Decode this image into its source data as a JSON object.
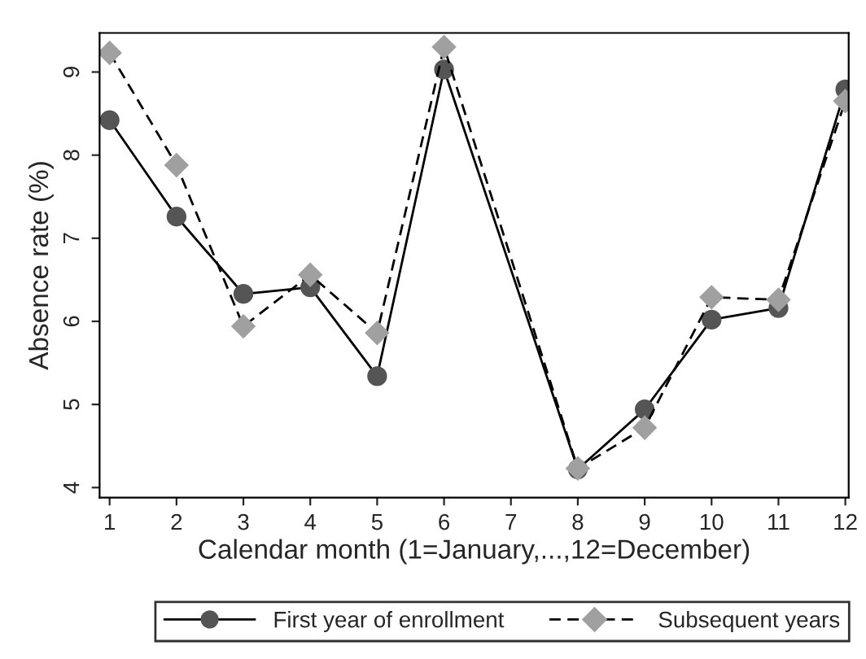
{
  "chart_data": {
    "type": "line",
    "xlabel": "Calendar month (1=January,...,12=December)",
    "ylabel": "Absence rate (%)",
    "xlim": [
      0.85,
      12.05
    ],
    "xticks": [
      1,
      2,
      3,
      4,
      5,
      6,
      7,
      8,
      9,
      10,
      11,
      12
    ],
    "ylim": [
      3.88,
      9.47
    ],
    "yticks": [
      4,
      5,
      6,
      7,
      8,
      9
    ],
    "grid": false,
    "legend": "bottom",
    "series": [
      {
        "name": "First year of enrollment",
        "color": "#555555",
        "marker": "circle",
        "line_style": "solid",
        "x": [
          1,
          2,
          3,
          4,
          5,
          6,
          8,
          9,
          10,
          11,
          12
        ],
        "values": [
          8.42,
          7.26,
          6.33,
          6.41,
          5.34,
          9.03,
          4.22,
          4.94,
          6.02,
          6.16,
          8.79
        ]
      },
      {
        "name": "Subsequent years",
        "color": "#a0a0a0",
        "marker": "diamond",
        "line_style": "dashed",
        "x": [
          1,
          2,
          3,
          4,
          5,
          6,
          8,
          9,
          10,
          11,
          12
        ],
        "values": [
          9.23,
          7.88,
          5.94,
          6.56,
          5.86,
          9.3,
          4.23,
          4.72,
          6.29,
          6.26,
          8.65
        ]
      }
    ]
  }
}
